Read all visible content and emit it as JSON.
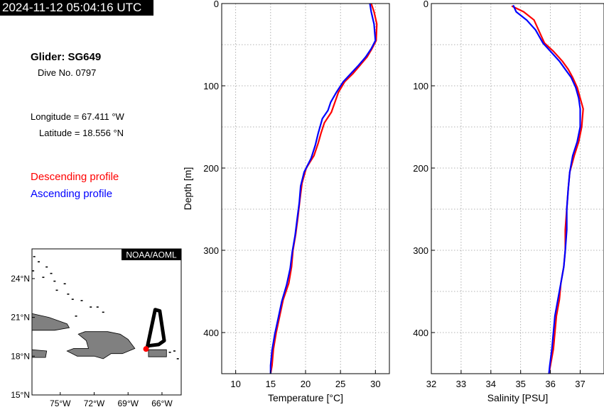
{
  "header": {
    "timestamp": "2024-11-12 05:04:16 UTC",
    "glider": "Glider: SG649",
    "dive": "Dive No. 0797",
    "longitude": "Longitude = 67.411 °W",
    "latitude": "Latitude = 18.556 °N"
  },
  "legend": {
    "descending": "Descending profile",
    "ascending": "Ascending profile",
    "descending_color": "#ff0000",
    "ascending_color": "#0000ff"
  },
  "map": {
    "credit": "NOAA/AOML",
    "lat_ticks": [
      "24°N",
      "21°N",
      "18°N",
      "15°N"
    ],
    "lon_ticks": [
      "75°W",
      "72°W",
      "69°W",
      "66°W"
    ],
    "lat_values": [
      24,
      21,
      18,
      15
    ],
    "lon_values": [
      -75,
      -72,
      -69,
      -66
    ],
    "lat_range": [
      15,
      26.3
    ],
    "lon_range": [
      -77.5,
      -64.3
    ],
    "land_color": "#808080",
    "glider_position": {
      "lon": -67.411,
      "lat": 18.556
    },
    "position_color": "#ff0000",
    "track": [
      [
        -67.3,
        18.7
      ],
      [
        -66.6,
        21.6
      ],
      [
        -66.2,
        21.5
      ],
      [
        -65.8,
        19.2
      ],
      [
        -66.3,
        18.9
      ],
      [
        -67.2,
        18.8
      ]
    ]
  },
  "chart_data": [
    {
      "type": "line",
      "xlabel": "Temperature [°C]",
      "ylabel": "Depth [m]",
      "xlim": [
        8,
        32
      ],
      "ylim": [
        450,
        0
      ],
      "x_ticks": [
        10,
        15,
        20,
        25,
        30
      ],
      "x_tick_labels": [
        "10",
        "15",
        "20",
        "25",
        "30"
      ],
      "y_ticks": [
        0,
        100,
        200,
        300,
        400
      ],
      "y_tick_labels": [
        "0",
        "100",
        "200",
        "300",
        "400"
      ],
      "grid": true,
      "series": [
        {
          "name": "Descending profile",
          "color": "#ff0000",
          "points": [
            [
              29.4,
              0
            ],
            [
              29.8,
              10
            ],
            [
              30.2,
              25
            ],
            [
              30.1,
              45
            ],
            [
              29.5,
              55
            ],
            [
              28.8,
              65
            ],
            [
              27.8,
              75
            ],
            [
              26.8,
              85
            ],
            [
              25.6,
              95
            ],
            [
              24.7,
              108
            ],
            [
              24.2,
              120
            ],
            [
              23.7,
              132
            ],
            [
              22.7,
              145
            ],
            [
              22.2,
              158
            ],
            [
              21.8,
              170
            ],
            [
              21.2,
              185
            ],
            [
              20.1,
              200
            ],
            [
              19.5,
              218
            ],
            [
              19.2,
              238
            ],
            [
              18.9,
              260
            ],
            [
              18.6,
              280
            ],
            [
              18.2,
              300
            ],
            [
              18.0,
              320
            ],
            [
              17.6,
              340
            ],
            [
              16.8,
              360
            ],
            [
              16.3,
              380
            ],
            [
              15.8,
              400
            ],
            [
              15.4,
              420
            ],
            [
              15.2,
              440
            ],
            [
              15.0,
              450
            ]
          ]
        },
        {
          "name": "Ascending profile",
          "color": "#0000ff",
          "points": [
            [
              29.2,
              0
            ],
            [
              29.4,
              10
            ],
            [
              29.8,
              25
            ],
            [
              30.0,
              45
            ],
            [
              29.4,
              55
            ],
            [
              28.6,
              65
            ],
            [
              27.6,
              75
            ],
            [
              26.5,
              85
            ],
            [
              25.4,
              95
            ],
            [
              24.4,
              108
            ],
            [
              23.6,
              120
            ],
            [
              23.2,
              130
            ],
            [
              22.4,
              140
            ],
            [
              21.8,
              158
            ],
            [
              21.4,
              172
            ],
            [
              20.8,
              188
            ],
            [
              19.8,
              205
            ],
            [
              19.3,
              222
            ],
            [
              19.1,
              242
            ],
            [
              18.8,
              262
            ],
            [
              18.5,
              282
            ],
            [
              18.1,
              302
            ],
            [
              17.8,
              322
            ],
            [
              17.3,
              342
            ],
            [
              16.6,
              362
            ],
            [
              16.1,
              382
            ],
            [
              15.6,
              402
            ],
            [
              15.2,
              422
            ],
            [
              15.0,
              440
            ],
            [
              15.0,
              450
            ]
          ]
        }
      ]
    },
    {
      "type": "line",
      "xlabel": "Salinity [PSU]",
      "ylabel": "",
      "xlim": [
        32,
        37.8
      ],
      "ylim": [
        450,
        0
      ],
      "x_ticks": [
        32,
        33,
        34,
        35,
        36,
        37
      ],
      "x_tick_labels": [
        "32",
        "33",
        "34",
        "35",
        "36",
        "37"
      ],
      "y_ticks": [
        0,
        100,
        200,
        300,
        400
      ],
      "y_tick_labels": [
        "0",
        "100",
        "200",
        "300",
        "400"
      ],
      "grid": true,
      "series": [
        {
          "name": "Descending profile",
          "color": "#ff0000",
          "points": [
            [
              34.7,
              3
            ],
            [
              35.1,
              10
            ],
            [
              35.45,
              20
            ],
            [
              35.6,
              32
            ],
            [
              35.8,
              48
            ],
            [
              36.1,
              58
            ],
            [
              36.4,
              70
            ],
            [
              36.6,
              80
            ],
            [
              36.75,
              90
            ],
            [
              36.9,
              102
            ],
            [
              37.0,
              115
            ],
            [
              37.1,
              128
            ],
            [
              37.05,
              150
            ],
            [
              36.95,
              168
            ],
            [
              36.8,
              185
            ],
            [
              36.65,
              205
            ],
            [
              36.6,
              225
            ],
            [
              36.55,
              250
            ],
            [
              36.5,
              275
            ],
            [
              36.5,
              300
            ],
            [
              36.45,
              320
            ],
            [
              36.35,
              340
            ],
            [
              36.3,
              360
            ],
            [
              36.2,
              380
            ],
            [
              36.15,
              400
            ],
            [
              36.1,
              420
            ],
            [
              36.0,
              440
            ],
            [
              35.95,
              450
            ]
          ]
        },
        {
          "name": "Ascending profile",
          "color": "#0000ff",
          "points": [
            [
              34.75,
              2
            ],
            [
              34.85,
              10
            ],
            [
              35.2,
              20
            ],
            [
              35.5,
              32
            ],
            [
              35.75,
              48
            ],
            [
              36.0,
              58
            ],
            [
              36.3,
              70
            ],
            [
              36.5,
              80
            ],
            [
              36.7,
              90
            ],
            [
              36.85,
              102
            ],
            [
              36.95,
              115
            ],
            [
              37.0,
              128
            ],
            [
              37.0,
              150
            ],
            [
              36.9,
              168
            ],
            [
              36.75,
              185
            ],
            [
              36.65,
              205
            ],
            [
              36.6,
              225
            ],
            [
              36.55,
              250
            ],
            [
              36.55,
              275
            ],
            [
              36.5,
              300
            ],
            [
              36.45,
              320
            ],
            [
              36.35,
              340
            ],
            [
              36.25,
              360
            ],
            [
              36.15,
              380
            ],
            [
              36.1,
              400
            ],
            [
              36.05,
              420
            ],
            [
              35.98,
              440
            ],
            [
              35.95,
              450
            ]
          ]
        }
      ]
    }
  ]
}
